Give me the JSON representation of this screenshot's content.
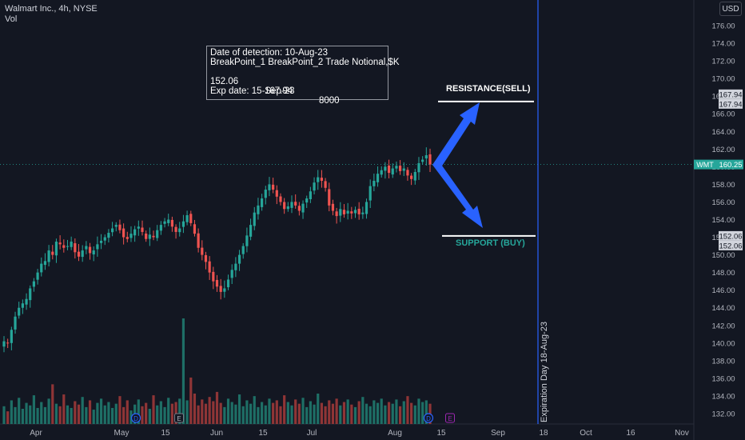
{
  "header": {
    "symbol_line": "Walmart Inc., 4h, NYSE",
    "vol_label": "Vol"
  },
  "currency_button": "USD",
  "info_box": {
    "line1": "Date of detection: 10-Aug-23",
    "line2": "BreakPoint_1 BreakPoint_2 Trade Notional,$K",
    "line3_bp1": "152.06",
    "line3_bp2": "167.94",
    "line3_notional": "8000",
    "line4": "Exp date: 15-Sep-23"
  },
  "levels": {
    "resistance_label": "RESISTANCE(SELL)",
    "support_label": "SUPPORT (BUY)",
    "resistance_price": 167.94,
    "support_price": 152.06,
    "resistance_tag": "167.94",
    "support_tag": "152.06"
  },
  "current_price": {
    "ticker": "WMT",
    "value": 160.25,
    "label": "160.25"
  },
  "expiration_label": "Expiration Day 18-Aug-23",
  "event_markers": [
    "D",
    "E",
    "D",
    "D",
    "E"
  ],
  "colors": {
    "background": "#131722",
    "up": "#26a69a",
    "down": "#ef5350",
    "vol_up": "#1e6f66",
    "vol_down": "#8f3536",
    "resistance_label": "#ffffff",
    "support_label": "#26a69a",
    "arrow": "#2962ff",
    "expiration_line": "#2962ff",
    "axis_text": "#b2b5be",
    "price_tag_bg": "#26a69a"
  },
  "chart_data": {
    "type": "candlestick",
    "title": "Walmart Inc., 4h, NYSE",
    "ylim": [
      131,
      178
    ],
    "y_ticks": [
      132,
      134,
      136,
      138,
      140,
      142,
      144,
      146,
      148,
      150,
      152,
      154,
      156,
      158,
      160,
      162,
      164,
      166,
      168,
      170,
      172,
      174,
      176
    ],
    "y_tick_labels": [
      "132.00",
      "134.00",
      "136.00",
      "138.00",
      "140.00",
      "142.00",
      "144.00",
      "146.00",
      "148.00",
      "150.00",
      "152.00",
      "154.00",
      "156.00",
      "158.00",
      "160.00",
      "162.00",
      "164.00",
      "166.00",
      "168.00",
      "170.00",
      "172.00",
      "174.00",
      "176.00"
    ],
    "x_labels": [
      "Apr",
      "May",
      "15",
      "Jun",
      "15",
      "Jul",
      "Aug",
      "15",
      "Sep",
      "18",
      "Oct",
      "16",
      "Nov"
    ],
    "close_path": [
      140.2,
      140.0,
      141.5,
      143.0,
      144.0,
      144.5,
      145.0,
      146.2,
      147.0,
      148.0,
      149.0,
      149.3,
      150.5,
      150.0,
      151.5,
      151.2,
      150.8,
      151.0,
      151.5,
      150.3,
      149.8,
      150.5,
      151.0,
      150.2,
      150.5,
      151.2,
      151.6,
      152.0,
      152.5,
      153.0,
      153.4,
      152.8,
      152.0,
      151.8,
      152.4,
      152.9,
      153.2,
      152.6,
      151.8,
      152.3,
      152.0,
      152.8,
      153.4,
      153.8,
      154.0,
      153.2,
      152.6,
      153.0,
      153.8,
      154.5,
      153.6,
      152.4,
      150.8,
      150.0,
      149.2,
      148.0,
      147.0,
      146.4,
      145.8,
      146.2,
      147.2,
      148.3,
      149.0,
      150.0,
      151.0,
      152.2,
      153.4,
      154.8,
      155.6,
      156.4,
      157.4,
      158.0,
      157.4,
      156.6,
      156.0,
      155.2,
      155.5,
      156.0,
      155.6,
      155.0,
      155.8,
      156.4,
      157.2,
      158.2,
      158.8,
      158.4,
      157.6,
      155.6,
      155.0,
      154.4,
      155.2,
      154.6,
      155.0,
      154.7,
      155.1,
      154.6,
      154.8,
      156.0,
      157.8,
      158.4,
      159.2,
      159.6,
      160.0,
      159.3,
      159.8,
      160.1,
      159.5,
      159.8,
      159.0,
      158.6,
      159.4,
      160.4,
      160.8,
      161.3,
      160.25
    ],
    "volume_path": [
      2.1,
      1.5,
      2.8,
      2.0,
      3.1,
      1.8,
      2.5,
      2.2,
      3.4,
      1.9,
      2.6,
      2.0,
      3.0,
      4.7,
      2.4,
      2.1,
      3.5,
      2.2,
      1.9,
      2.7,
      2.3,
      3.2,
      2.0,
      2.8,
      1.7,
      2.5,
      3.0,
      2.2,
      2.6,
      1.9,
      2.4,
      3.3,
      2.0,
      2.8,
      1.6,
      2.3,
      2.9,
      2.1,
      2.5,
      1.8,
      3.4,
      2.2,
      2.7,
      2.0,
      3.1,
      2.4,
      2.6,
      3.0,
      12.5,
      2.8,
      5.5,
      3.6,
      2.2,
      2.9,
      2.4,
      3.2,
      2.7,
      3.8,
      2.5,
      2.0,
      3.0,
      2.6,
      2.3,
      3.5,
      2.1,
      2.8,
      2.4,
      3.3,
      2.0,
      2.6,
      2.2,
      3.0,
      2.5,
      2.8,
      2.1,
      3.4,
      2.6,
      2.2,
      2.9,
      2.4,
      3.1,
      2.0,
      2.7,
      2.3,
      3.6,
      2.5,
      2.1,
      2.8,
      2.4,
      3.0,
      2.2,
      2.6,
      2.9,
      2.3,
      2.0,
      2.7,
      3.2,
      2.4,
      2.1,
      2.8,
      2.5,
      3.0,
      2.2,
      2.6,
      2.4,
      2.9,
      2.1,
      2.7,
      3.3,
      2.5,
      2.2,
      3.0,
      2.6,
      2.8,
      2.4
    ]
  }
}
